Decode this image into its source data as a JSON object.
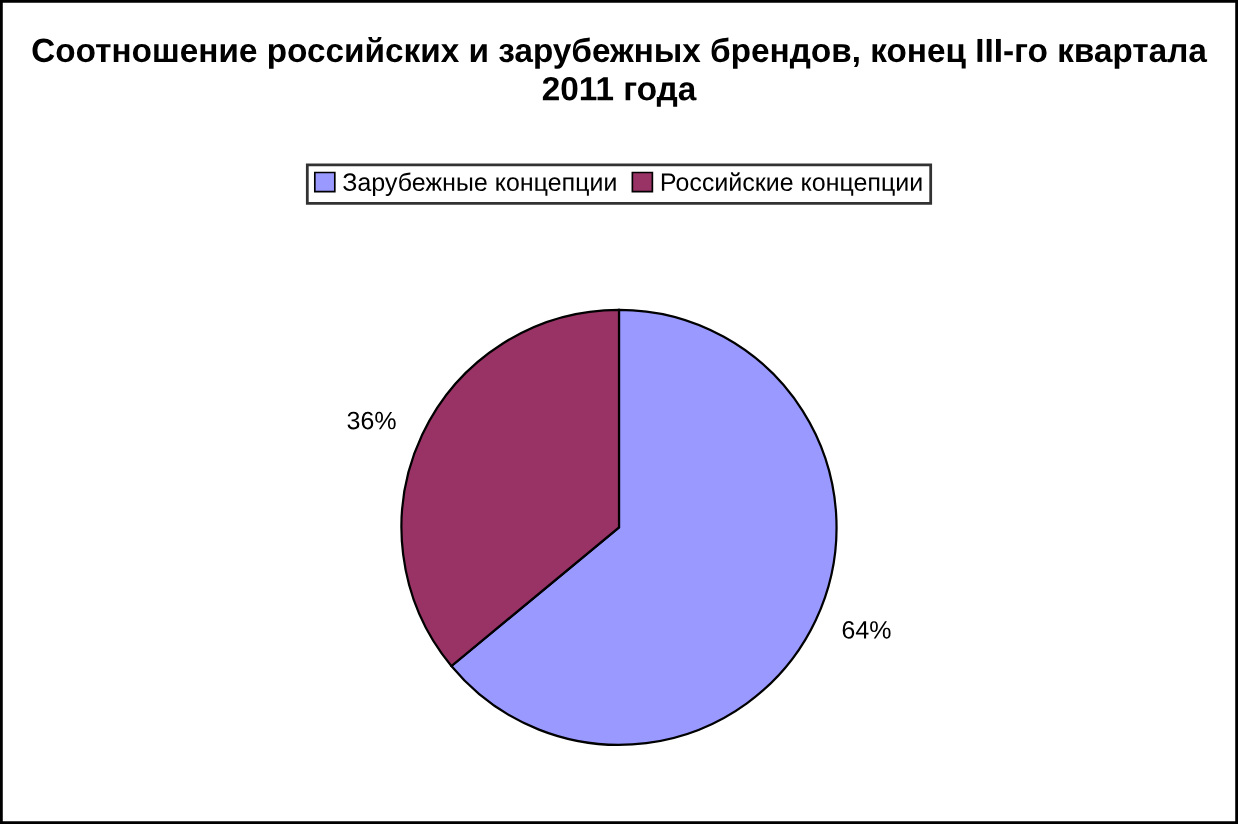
{
  "chart_data": {
    "type": "pie",
    "title": "Соотношение российских и зарубежных брендов, конец III-го квартала 2011 года",
    "categories": [
      "Зарубежные концепции",
      "Российские концепции"
    ],
    "values": [
      64,
      36
    ],
    "value_labels": [
      "64%",
      "36%"
    ],
    "colors": [
      "#9999ff",
      "#993366"
    ],
    "legend": "top"
  }
}
